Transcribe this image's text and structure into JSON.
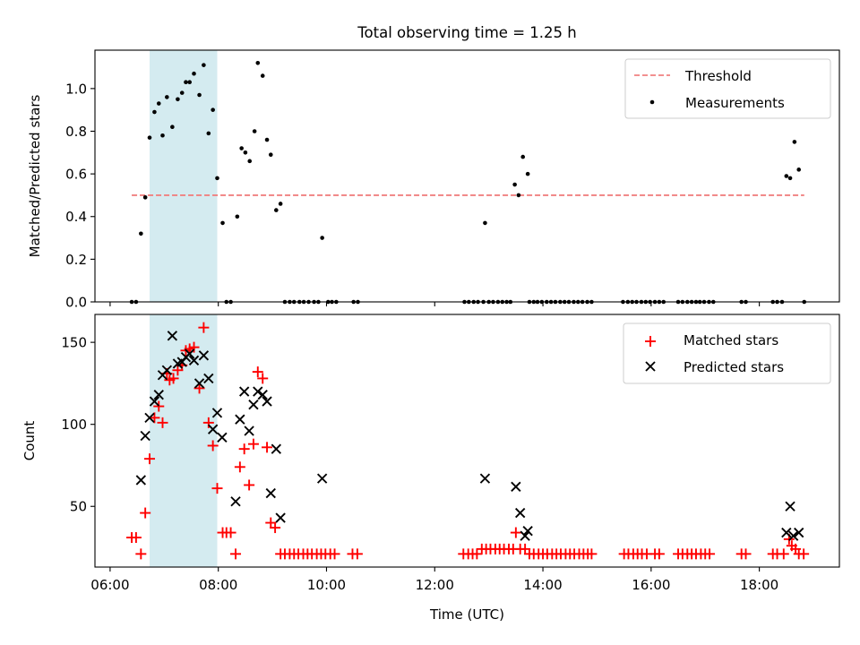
{
  "figure": {
    "title": "Total observing time = 1.25 h",
    "xlabel": "Time (UTC)",
    "x_ticks": [
      "06:00",
      "08:00",
      "10:00",
      "12:00",
      "14:00",
      "16:00",
      "18:00"
    ],
    "x_tick_hours": [
      6,
      8,
      10,
      12,
      14,
      16,
      18
    ],
    "xlim": [
      5.72,
      19.48
    ],
    "observing_window_hours": [
      6.73,
      7.98
    ],
    "window_color": "#d4ebf0"
  },
  "chart_data": [
    {
      "type": "scatter",
      "ylabel": "Matched/Predicted stars",
      "ylim": [
        0,
        1.18
      ],
      "y_ticks": [
        0.0,
        0.2,
        0.4,
        0.6,
        0.8,
        1.0
      ],
      "y_tick_labels": [
        "0.0",
        "0.2",
        "0.4",
        "0.6",
        "0.8",
        "1.0"
      ],
      "threshold": {
        "name": "Threshold",
        "value": 0.5,
        "x_range": [
          6.4,
          18.83
        ],
        "color": "#f08080",
        "style": "dashed"
      },
      "legend_position": "top-right",
      "series": [
        {
          "name": "Measurements",
          "color": "#000000",
          "points": [
            [
              6.4,
              0.0
            ],
            [
              6.48,
              0.0
            ],
            [
              6.57,
              0.32
            ],
            [
              6.65,
              0.49
            ],
            [
              6.73,
              0.77
            ],
            [
              6.82,
              0.89
            ],
            [
              6.9,
              0.93
            ],
            [
              6.97,
              0.78
            ],
            [
              7.05,
              0.96
            ],
            [
              7.15,
              0.82
            ],
            [
              7.25,
              0.95
            ],
            [
              7.33,
              0.98
            ],
            [
              7.4,
              1.03
            ],
            [
              7.47,
              1.03
            ],
            [
              7.55,
              1.07
            ],
            [
              7.65,
              0.97
            ],
            [
              7.73,
              1.11
            ],
            [
              7.82,
              0.79
            ],
            [
              7.9,
              0.9
            ],
            [
              7.98,
              0.58
            ],
            [
              8.08,
              0.37
            ],
            [
              8.15,
              0.0
            ],
            [
              8.23,
              0.0
            ],
            [
              8.35,
              0.4
            ],
            [
              8.43,
              0.72
            ],
            [
              8.5,
              0.7
            ],
            [
              8.58,
              0.66
            ],
            [
              8.67,
              0.8
            ],
            [
              8.73,
              1.12
            ],
            [
              8.82,
              1.06
            ],
            [
              8.9,
              0.76
            ],
            [
              8.97,
              0.69
            ],
            [
              9.07,
              0.43
            ],
            [
              9.15,
              0.46
            ],
            [
              9.23,
              0.0
            ],
            [
              9.32,
              0.0
            ],
            [
              9.4,
              0.0
            ],
            [
              9.5,
              0.0
            ],
            [
              9.58,
              0.0
            ],
            [
              9.67,
              0.0
            ],
            [
              9.77,
              0.0
            ],
            [
              9.85,
              0.0
            ],
            [
              9.92,
              0.3
            ],
            [
              10.03,
              0.0
            ],
            [
              10.1,
              0.0
            ],
            [
              10.18,
              0.0
            ],
            [
              10.5,
              0.0
            ],
            [
              10.58,
              0.0
            ],
            [
              12.55,
              0.0
            ],
            [
              12.63,
              0.0
            ],
            [
              12.72,
              0.0
            ],
            [
              12.8,
              0.0
            ],
            [
              12.9,
              0.0
            ],
            [
              12.93,
              0.37
            ],
            [
              13.0,
              0.0
            ],
            [
              13.08,
              0.0
            ],
            [
              13.17,
              0.0
            ],
            [
              13.25,
              0.0
            ],
            [
              13.33,
              0.0
            ],
            [
              13.4,
              0.0
            ],
            [
              13.48,
              0.55
            ],
            [
              13.55,
              0.5
            ],
            [
              13.63,
              0.68
            ],
            [
              13.72,
              0.6
            ],
            [
              13.75,
              0.0
            ],
            [
              13.83,
              0.0
            ],
            [
              13.9,
              0.0
            ],
            [
              13.98,
              0.0
            ],
            [
              14.07,
              0.0
            ],
            [
              14.15,
              0.0
            ],
            [
              14.23,
              0.0
            ],
            [
              14.32,
              0.0
            ],
            [
              14.4,
              0.0
            ],
            [
              14.48,
              0.0
            ],
            [
              14.57,
              0.0
            ],
            [
              14.65,
              0.0
            ],
            [
              14.73,
              0.0
            ],
            [
              14.82,
              0.0
            ],
            [
              14.9,
              0.0
            ],
            [
              15.48,
              0.0
            ],
            [
              15.57,
              0.0
            ],
            [
              15.65,
              0.0
            ],
            [
              15.73,
              0.0
            ],
            [
              15.82,
              0.0
            ],
            [
              15.9,
              0.0
            ],
            [
              15.98,
              0.0
            ],
            [
              16.07,
              0.0
            ],
            [
              16.15,
              0.0
            ],
            [
              16.23,
              0.0
            ],
            [
              16.5,
              0.0
            ],
            [
              16.58,
              0.0
            ],
            [
              16.67,
              0.0
            ],
            [
              16.75,
              0.0
            ],
            [
              16.83,
              0.0
            ],
            [
              16.9,
              0.0
            ],
            [
              16.98,
              0.0
            ],
            [
              17.07,
              0.0
            ],
            [
              17.15,
              0.0
            ],
            [
              17.67,
              0.0
            ],
            [
              17.75,
              0.0
            ],
            [
              18.25,
              0.0
            ],
            [
              18.33,
              0.0
            ],
            [
              18.42,
              0.0
            ],
            [
              18.5,
              0.59
            ],
            [
              18.57,
              0.58
            ],
            [
              18.65,
              0.75
            ],
            [
              18.73,
              0.62
            ],
            [
              18.83,
              0.0
            ]
          ]
        }
      ]
    },
    {
      "type": "scatter",
      "ylabel": "Count",
      "ylim": [
        13,
        167
      ],
      "y_ticks": [
        50,
        100,
        150
      ],
      "y_tick_labels": [
        "50",
        "100",
        "150"
      ],
      "legend_position": "top-right",
      "series": [
        {
          "name": "Matched stars",
          "marker": "plus",
          "color": "#ff0000",
          "points": [
            [
              6.4,
              31
            ],
            [
              6.48,
              31
            ],
            [
              6.57,
              21
            ],
            [
              6.65,
              46
            ],
            [
              6.73,
              79
            ],
            [
              6.82,
              104
            ],
            [
              6.9,
              111
            ],
            [
              6.97,
              101
            ],
            [
              7.05,
              131
            ],
            [
              7.1,
              127
            ],
            [
              7.17,
              128
            ],
            [
              7.25,
              133
            ],
            [
              7.33,
              136
            ],
            [
              7.4,
              145
            ],
            [
              7.47,
              146
            ],
            [
              7.55,
              147
            ],
            [
              7.65,
              122
            ],
            [
              7.73,
              159
            ],
            [
              7.82,
              101
            ],
            [
              7.9,
              87
            ],
            [
              7.98,
              61
            ],
            [
              8.08,
              34
            ],
            [
              8.15,
              34
            ],
            [
              8.23,
              34
            ],
            [
              8.32,
              21
            ],
            [
              8.4,
              74
            ],
            [
              8.48,
              85
            ],
            [
              8.57,
              63
            ],
            [
              8.65,
              88
            ],
            [
              8.73,
              132
            ],
            [
              8.82,
              128
            ],
            [
              8.9,
              86
            ],
            [
              8.97,
              40
            ],
            [
              9.05,
              37
            ],
            [
              9.15,
              21
            ],
            [
              9.23,
              21
            ],
            [
              9.32,
              21
            ],
            [
              9.4,
              21
            ],
            [
              9.48,
              21
            ],
            [
              9.57,
              21
            ],
            [
              9.65,
              21
            ],
            [
              9.73,
              21
            ],
            [
              9.82,
              21
            ],
            [
              9.9,
              21
            ],
            [
              9.98,
              21
            ],
            [
              10.07,
              21
            ],
            [
              10.15,
              21
            ],
            [
              10.48,
              21
            ],
            [
              10.57,
              21
            ],
            [
              12.53,
              21
            ],
            [
              12.62,
              21
            ],
            [
              12.7,
              21
            ],
            [
              12.78,
              21
            ],
            [
              12.87,
              24
            ],
            [
              12.95,
              24
            ],
            [
              13.03,
              24
            ],
            [
              13.12,
              24
            ],
            [
              13.2,
              24
            ],
            [
              13.28,
              24
            ],
            [
              13.37,
              24
            ],
            [
              13.45,
              24
            ],
            [
              13.5,
              34
            ],
            [
              13.58,
              24
            ],
            [
              13.67,
              24
            ],
            [
              13.75,
              21
            ],
            [
              13.83,
              21
            ],
            [
              13.92,
              21
            ],
            [
              14.0,
              21
            ],
            [
              14.08,
              21
            ],
            [
              14.17,
              21
            ],
            [
              14.25,
              21
            ],
            [
              14.33,
              21
            ],
            [
              14.42,
              21
            ],
            [
              14.5,
              21
            ],
            [
              14.58,
              21
            ],
            [
              14.67,
              21
            ],
            [
              14.75,
              21
            ],
            [
              14.83,
              21
            ],
            [
              14.9,
              21
            ],
            [
              15.5,
              21
            ],
            [
              15.58,
              21
            ],
            [
              15.67,
              21
            ],
            [
              15.75,
              21
            ],
            [
              15.83,
              21
            ],
            [
              15.92,
              21
            ],
            [
              16.07,
              21
            ],
            [
              16.15,
              21
            ],
            [
              16.5,
              21
            ],
            [
              16.58,
              21
            ],
            [
              16.67,
              21
            ],
            [
              16.75,
              21
            ],
            [
              16.83,
              21
            ],
            [
              16.92,
              21
            ],
            [
              17.0,
              21
            ],
            [
              17.08,
              21
            ],
            [
              17.67,
              21
            ],
            [
              17.75,
              21
            ],
            [
              18.25,
              21
            ],
            [
              18.33,
              21
            ],
            [
              18.45,
              21
            ],
            [
              18.55,
              30
            ],
            [
              18.6,
              26
            ],
            [
              18.67,
              24
            ],
            [
              18.73,
              21
            ],
            [
              18.82,
              21
            ]
          ]
        },
        {
          "name": "Predicted stars",
          "marker": "cross",
          "color": "#000000",
          "points": [
            [
              6.57,
              66
            ],
            [
              6.65,
              93
            ],
            [
              6.73,
              104
            ],
            [
              6.82,
              114
            ],
            [
              6.9,
              118
            ],
            [
              6.97,
              130
            ],
            [
              7.05,
              133
            ],
            [
              7.15,
              154
            ],
            [
              7.25,
              137
            ],
            [
              7.33,
              138
            ],
            [
              7.4,
              141
            ],
            [
              7.47,
              143
            ],
            [
              7.55,
              139
            ],
            [
              7.65,
              125
            ],
            [
              7.73,
              142
            ],
            [
              7.82,
              128
            ],
            [
              7.9,
              97
            ],
            [
              7.98,
              107
            ],
            [
              8.07,
              92
            ],
            [
              8.32,
              53
            ],
            [
              8.4,
              103
            ],
            [
              8.48,
              120
            ],
            [
              8.57,
              96
            ],
            [
              8.65,
              112
            ],
            [
              8.73,
              120
            ],
            [
              8.82,
              118
            ],
            [
              8.9,
              114
            ],
            [
              8.97,
              58
            ],
            [
              9.07,
              85
            ],
            [
              9.15,
              43
            ],
            [
              9.92,
              67
            ],
            [
              12.93,
              67
            ],
            [
              13.5,
              62
            ],
            [
              13.58,
              46
            ],
            [
              13.67,
              32
            ],
            [
              13.72,
              35
            ],
            [
              18.5,
              34
            ],
            [
              18.57,
              50
            ],
            [
              18.63,
              32
            ],
            [
              18.73,
              34
            ]
          ]
        }
      ]
    }
  ]
}
